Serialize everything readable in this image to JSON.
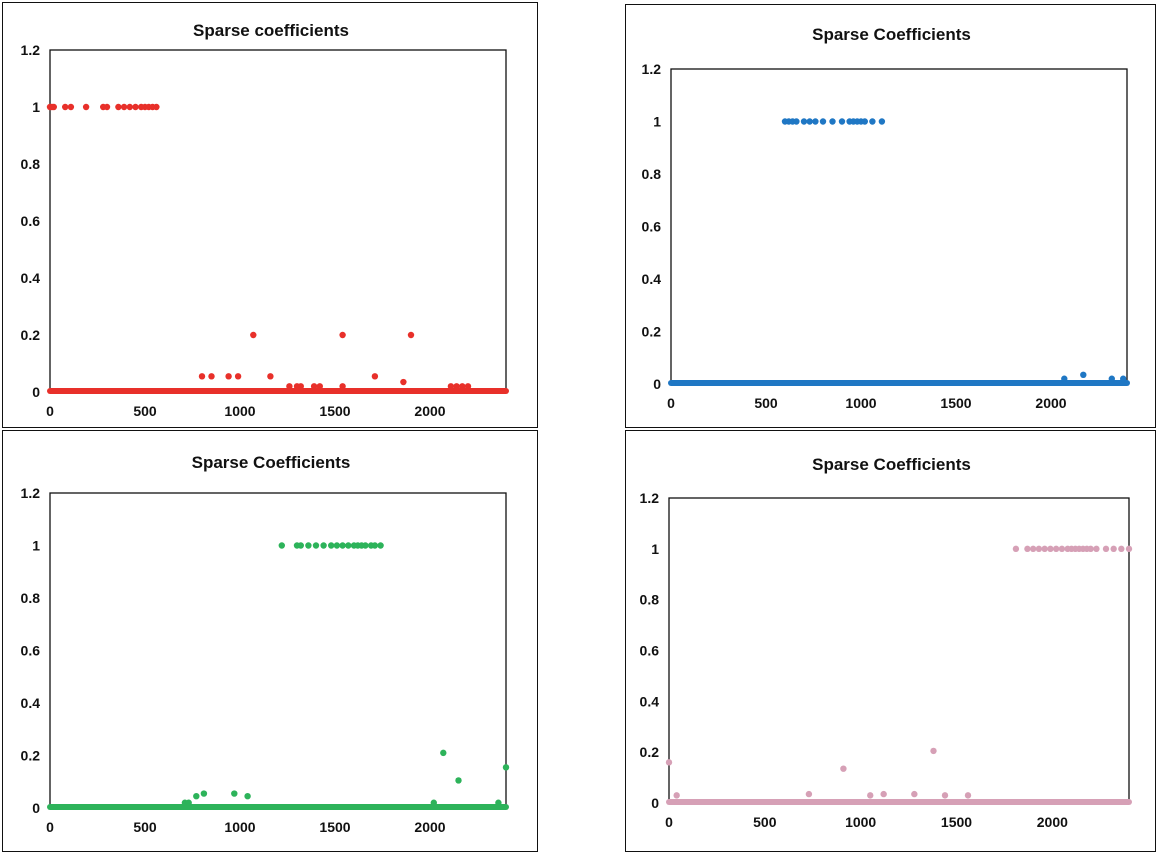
{
  "chart_data": [
    {
      "type": "scatter",
      "title": "Sparse coefficients",
      "color": "#e8302a",
      "xlim": [
        0,
        2400
      ],
      "ylim": [
        0,
        1.2
      ],
      "xticks": [
        "0",
        "500",
        "1000",
        "1500",
        "2000"
      ],
      "yticks": [
        "0",
        "0.2",
        "0.4",
        "0.6",
        "0.8",
        "1",
        "1.2"
      ],
      "grid": false,
      "baseline": {
        "x_start": 0,
        "x_end": 2400,
        "y": 0
      },
      "points": [
        [
          0,
          1
        ],
        [
          10,
          1
        ],
        [
          20,
          1
        ],
        [
          80,
          1
        ],
        [
          110,
          1
        ],
        [
          190,
          1
        ],
        [
          280,
          1
        ],
        [
          300,
          1
        ],
        [
          360,
          1
        ],
        [
          390,
          1
        ],
        [
          420,
          1
        ],
        [
          450,
          1
        ],
        [
          480,
          1
        ],
        [
          500,
          1
        ],
        [
          520,
          1
        ],
        [
          540,
          1
        ],
        [
          560,
          1
        ],
        [
          800,
          0.055
        ],
        [
          850,
          0.055
        ],
        [
          940,
          0.055
        ],
        [
          990,
          0.055
        ],
        [
          1070,
          0.2
        ],
        [
          1160,
          0.055
        ],
        [
          1260,
          0.02
        ],
        [
          1300,
          0.02
        ],
        [
          1320,
          0.02
        ],
        [
          1390,
          0.02
        ],
        [
          1420,
          0.02
        ],
        [
          1540,
          0.02
        ],
        [
          1540,
          0.2
        ],
        [
          1710,
          0.055
        ],
        [
          1860,
          0.035
        ],
        [
          1900,
          0.2
        ],
        [
          2110,
          0.02
        ],
        [
          2140,
          0.02
        ],
        [
          2170,
          0.02
        ],
        [
          2200,
          0.02
        ]
      ]
    },
    {
      "type": "scatter",
      "title": "Sparse Coefficients",
      "color": "#1f77c4",
      "xlim": [
        0,
        2400
      ],
      "ylim": [
        0,
        1.2
      ],
      "xticks": [
        "0",
        "500",
        "1000",
        "1500",
        "2000"
      ],
      "yticks": [
        "0",
        "0.2",
        "0.4",
        "0.6",
        "0.8",
        "1",
        "1.2"
      ],
      "grid": false,
      "baseline": {
        "x_start": 0,
        "x_end": 2400,
        "y": 0
      },
      "points": [
        [
          600,
          1
        ],
        [
          620,
          1
        ],
        [
          640,
          1
        ],
        [
          660,
          1
        ],
        [
          700,
          1
        ],
        [
          730,
          1
        ],
        [
          760,
          1
        ],
        [
          800,
          1
        ],
        [
          850,
          1
        ],
        [
          900,
          1
        ],
        [
          940,
          1
        ],
        [
          960,
          1
        ],
        [
          980,
          1
        ],
        [
          1000,
          1
        ],
        [
          1020,
          1
        ],
        [
          1060,
          1
        ],
        [
          1110,
          1
        ],
        [
          2070,
          0.02
        ],
        [
          2170,
          0.035
        ],
        [
          2320,
          0.02
        ],
        [
          2380,
          0.02
        ]
      ]
    },
    {
      "type": "scatter",
      "title": "Sparse Coefficients",
      "color": "#2db35a",
      "xlim": [
        0,
        2400
      ],
      "ylim": [
        0,
        1.2
      ],
      "xticks": [
        "0",
        "500",
        "1000",
        "1500",
        "2000"
      ],
      "yticks": [
        "0",
        "0.2",
        "0.4",
        "0.6",
        "0.8",
        "1",
        "1.2"
      ],
      "grid": false,
      "baseline": {
        "x_start": 0,
        "x_end": 2400,
        "y": 0
      },
      "points": [
        [
          1220,
          1
        ],
        [
          1300,
          1
        ],
        [
          1320,
          1
        ],
        [
          1360,
          1
        ],
        [
          1400,
          1
        ],
        [
          1440,
          1
        ],
        [
          1480,
          1
        ],
        [
          1510,
          1
        ],
        [
          1540,
          1
        ],
        [
          1570,
          1
        ],
        [
          1600,
          1
        ],
        [
          1620,
          1
        ],
        [
          1640,
          1
        ],
        [
          1660,
          1
        ],
        [
          1690,
          1
        ],
        [
          1710,
          1
        ],
        [
          1740,
          1
        ],
        [
          710,
          0.02
        ],
        [
          730,
          0.02
        ],
        [
          770,
          0.045
        ],
        [
          810,
          0.055
        ],
        [
          970,
          0.055
        ],
        [
          1040,
          0.045
        ],
        [
          2020,
          0.02
        ],
        [
          2070,
          0.21
        ],
        [
          2150,
          0.105
        ],
        [
          2360,
          0.02
        ],
        [
          2400,
          0.155
        ]
      ]
    },
    {
      "type": "scatter",
      "title": "Sparse Coefficients",
      "color": "#d6a0b6",
      "xlim": [
        0,
        2400
      ],
      "ylim": [
        0,
        1.2
      ],
      "xticks": [
        "0",
        "500",
        "1000",
        "1500",
        "2000"
      ],
      "yticks": [
        "0",
        "0.2",
        "0.4",
        "0.6",
        "0.8",
        "1",
        "1.2"
      ],
      "grid": false,
      "baseline": {
        "x_start": 0,
        "x_end": 2400,
        "y": 0
      },
      "points": [
        [
          0,
          0.16
        ],
        [
          40,
          0.03
        ],
        [
          730,
          0.035
        ],
        [
          910,
          0.135
        ],
        [
          1050,
          0.03
        ],
        [
          1120,
          0.035
        ],
        [
          1280,
          0.035
        ],
        [
          1380,
          0.205
        ],
        [
          1440,
          0.03
        ],
        [
          1560,
          0.03
        ],
        [
          1810,
          1
        ],
        [
          1870,
          1
        ],
        [
          1900,
          1
        ],
        [
          1930,
          1
        ],
        [
          1960,
          1
        ],
        [
          1990,
          1
        ],
        [
          2020,
          1
        ],
        [
          2050,
          1
        ],
        [
          2080,
          1
        ],
        [
          2100,
          1
        ],
        [
          2120,
          1
        ],
        [
          2140,
          1
        ],
        [
          2160,
          1
        ],
        [
          2180,
          1
        ],
        [
          2200,
          1
        ],
        [
          2230,
          1
        ],
        [
          2280,
          1
        ],
        [
          2320,
          1
        ],
        [
          2360,
          1
        ],
        [
          2400,
          1
        ]
      ]
    }
  ]
}
